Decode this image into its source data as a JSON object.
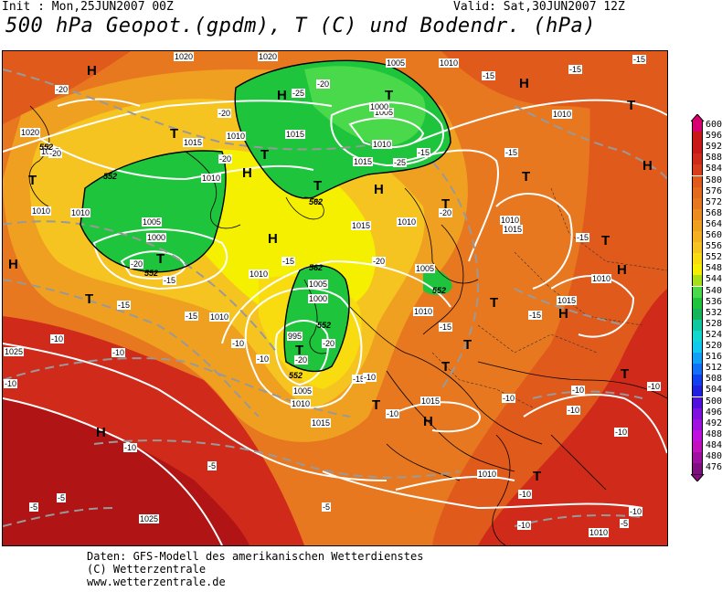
{
  "header": {
    "init": "Init : Mon,25JUN2007 00Z",
    "valid": "Valid: Sat,30JUN2007 12Z",
    "title": "500 hPa Geopot.(gpdm), T (C) und Bodendr. (hPa)"
  },
  "colors": {
    "green": "#1ec43c",
    "light_green": "#49d94a",
    "yellow": "#f4f000",
    "orange_light": "#f6c420",
    "orange": "#f0a020",
    "orange_dark": "#e87820",
    "red_orange": "#e05a1c",
    "red": "#d02a1a",
    "dark_red": "#b01414",
    "isobar": "#ffffff",
    "isotherm": "#999999"
  },
  "scale": [
    {
      "value": "600",
      "color": "#d80070"
    },
    {
      "value": "596",
      "color": "#c81818"
    },
    {
      "value": "592",
      "color": "#c81818"
    },
    {
      "value": "588",
      "color": "#d02a1a"
    },
    {
      "value": "584",
      "color": "#d83e1c"
    },
    {
      "value": "580",
      "color": "#e05a1c"
    },
    {
      "value": "576",
      "color": "#e46a1e"
    },
    {
      "value": "572",
      "color": "#e87820"
    },
    {
      "value": "568",
      "color": "#ec8c20"
    },
    {
      "value": "564",
      "color": "#f0a020"
    },
    {
      "value": "560",
      "color": "#f4b020"
    },
    {
      "value": "556",
      "color": "#f6c420"
    },
    {
      "value": "552",
      "color": "#f8dc10"
    },
    {
      "value": "548",
      "color": "#f4f000"
    },
    {
      "value": "544",
      "color": "#a8e018"
    },
    {
      "value": "540",
      "color": "#49d94a"
    },
    {
      "value": "536",
      "color": "#1ec43c"
    },
    {
      "value": "532",
      "color": "#14b45a"
    },
    {
      "value": "528",
      "color": "#10c8a0"
    },
    {
      "value": "524",
      "color": "#10d8d0"
    },
    {
      "value": "520",
      "color": "#10c8f0"
    },
    {
      "value": "516",
      "color": "#10a0f8"
    },
    {
      "value": "512",
      "color": "#1070f8"
    },
    {
      "value": "508",
      "color": "#1040f0"
    },
    {
      "value": "504",
      "color": "#2020e0"
    },
    {
      "value": "500",
      "color": "#5010e0"
    },
    {
      "value": "496",
      "color": "#8010e0"
    },
    {
      "value": "492",
      "color": "#a010e0"
    },
    {
      "value": "488",
      "color": "#c010e0"
    },
    {
      "value": "484",
      "color": "#c010c0"
    },
    {
      "value": "480",
      "color": "#a010a0"
    },
    {
      "value": "476",
      "color": "#801080"
    }
  ],
  "pressure_centers": [
    {
      "label": "H"
    },
    {
      "label": "T"
    },
    {
      "label": "T"
    },
    {
      "label": "H"
    },
    {
      "label": "T"
    },
    {
      "label": "T"
    },
    {
      "label": "H"
    },
    {
      "label": "T"
    },
    {
      "label": "T"
    },
    {
      "label": "H"
    },
    {
      "label": "T"
    },
    {
      "label": "H"
    },
    {
      "label": "H"
    },
    {
      "label": "T"
    },
    {
      "label": "T"
    },
    {
      "label": "H"
    },
    {
      "label": "T"
    },
    {
      "label": "T"
    },
    {
      "label": "H"
    },
    {
      "label": "T"
    },
    {
      "label": "T"
    },
    {
      "label": "H"
    },
    {
      "label": "H"
    },
    {
      "label": "T"
    },
    {
      "label": "T"
    },
    {
      "label": "T"
    },
    {
      "label": "H"
    },
    {
      "label": "T"
    },
    {
      "label": "H"
    },
    {
      "label": "T"
    }
  ],
  "isobar_labels": [
    "1020",
    "1020",
    "1005",
    "1010",
    "1015",
    "1010",
    "1015",
    "1010",
    "1005",
    "1000",
    "1005",
    "1010",
    "1010",
    "1015",
    "1010",
    "1015",
    "1005",
    "1000",
    "1010",
    "1015",
    "1010",
    "1005",
    "1000",
    "995",
    "1005",
    "1010",
    "1010",
    "1015",
    "1010",
    "1015",
    "1025",
    "1025",
    "1010",
    "1010",
    "1010",
    "1010",
    "1015",
    "1015",
    "1010",
    "1020"
  ],
  "isotherm_labels": [
    "-20",
    "-20",
    "-20",
    "-25",
    "-20",
    "-20",
    "-15",
    "-25",
    "-20",
    "-15",
    "-15",
    "-15",
    "-20",
    "-20",
    "-15",
    "-15",
    "-15",
    "-15",
    "-15",
    "-15",
    "-15",
    "-20",
    "-15",
    "-10",
    "-10",
    "-20",
    "-10",
    "-10",
    "-15",
    "-10",
    "-10",
    "-10",
    "-10",
    "-10",
    "-10",
    "-10",
    "-10",
    "-10",
    "-5",
    "-5",
    "-5",
    "-10",
    "-10",
    "-5",
    "-10",
    "-5"
  ],
  "geopot_labels": [
    "552",
    "552",
    "552",
    "562",
    "562",
    "552",
    "552",
    "552"
  ],
  "credits": {
    "line1": "Daten: GFS-Modell des amerikanischen Wetterdienstes",
    "line2": "(C) Wetterzentrale",
    "line3": "www.wetterzentrale.de"
  }
}
